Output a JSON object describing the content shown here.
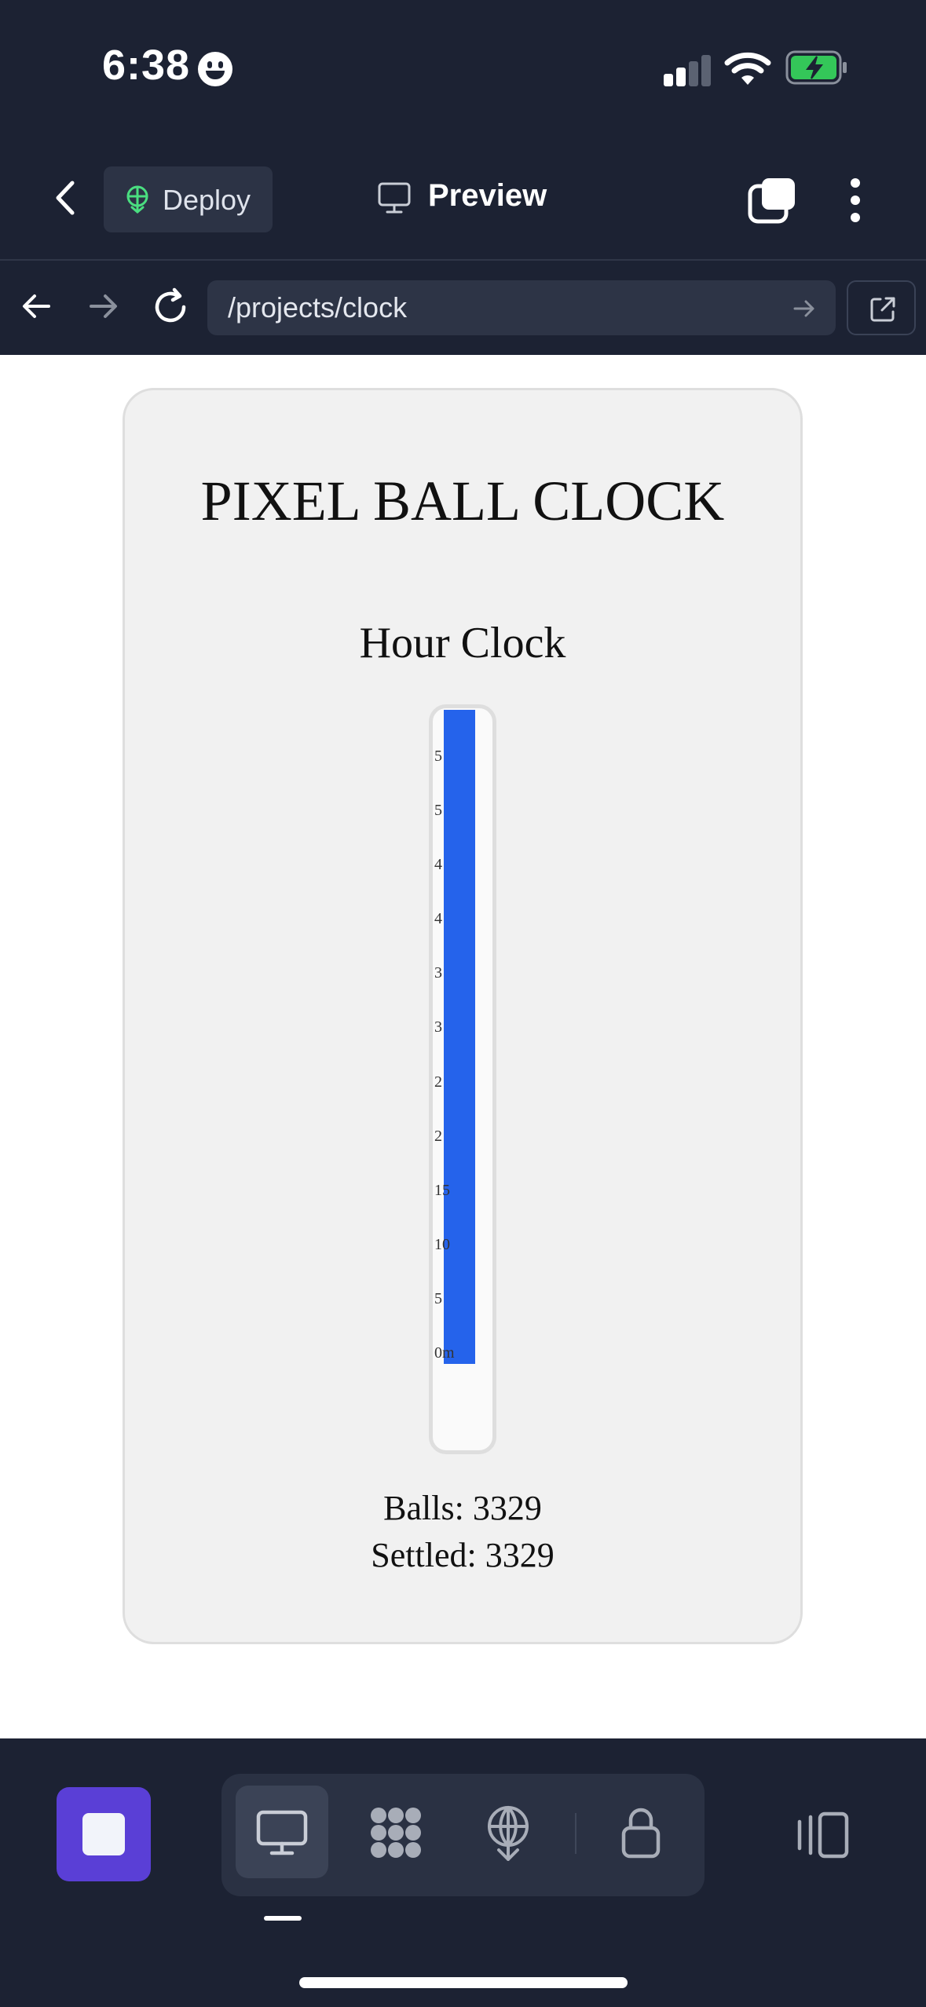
{
  "status_bar": {
    "time": "6:38",
    "icons": [
      "smiley-icon",
      "cellular-signal-icon",
      "wifi-icon",
      "battery-charging-icon"
    ]
  },
  "toolbar": {
    "deploy_label": "Deploy",
    "preview_label": "Preview",
    "icons": [
      "back-chevron-icon",
      "deploy-icon",
      "monitor-icon",
      "tabs-icon",
      "more-vertical-icon"
    ]
  },
  "address_bar": {
    "url": "/projects/clock",
    "icons": [
      "arrow-left-icon",
      "arrow-right-icon",
      "reload-icon",
      "go-arrow-icon",
      "open-external-icon"
    ]
  },
  "page": {
    "title": "PIXEL BALL CLOCK",
    "section_title": "Hour Clock",
    "tube": {
      "fill_fraction": 1.0,
      "fill_color": "#2563eb",
      "tick_labels": [
        "5",
        "5",
        "4",
        "4",
        "3",
        "3",
        "2",
        "2",
        "15",
        "10",
        "5",
        "0m"
      ]
    },
    "balls_label": "Balls: 3329",
    "settled_label": "Settled: 3329"
  },
  "bottom_bar": {
    "accent_color": "#5a3fd6",
    "icons": [
      "stop-icon",
      "desktop-preview-icon",
      "apps-icon",
      "deploy-icon",
      "lock-icon",
      "layout-panels-icon"
    ]
  }
}
